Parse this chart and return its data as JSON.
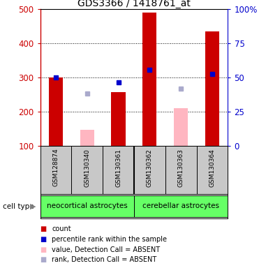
{
  "title": "GDS3366 / 1418761_at",
  "samples": [
    "GSM128874",
    "GSM130340",
    "GSM130361",
    "GSM130362",
    "GSM130363",
    "GSM130364"
  ],
  "cell_type_labels": [
    "neocortical astrocytes",
    "cerebellar astrocytes"
  ],
  "cell_type_color": "#66FF66",
  "red_bars": [
    300,
    null,
    258,
    490,
    null,
    435
  ],
  "pink_bars": [
    null,
    148,
    null,
    null,
    210,
    null
  ],
  "blue_squares": [
    300,
    null,
    287,
    323,
    null,
    310
  ],
  "lavender_squares": [
    null,
    253,
    null,
    null,
    268,
    null
  ],
  "ylim_left": [
    100,
    500
  ],
  "ylim_right": [
    0,
    100
  ],
  "yticks_left": [
    100,
    200,
    300,
    400,
    500
  ],
  "yticks_right": [
    0,
    25,
    50,
    75,
    100
  ],
  "ytick_labels_right": [
    "0",
    "25",
    "50",
    "75",
    "100%"
  ],
  "left_axis_color": "#CC0000",
  "right_axis_color": "#0000CC",
  "bg_sample_row": "#C8C8C8",
  "red_bar_color": "#CC0000",
  "pink_bar_color": "#FFB6C1",
  "blue_square_color": "#0000CC",
  "lavender_square_color": "#AAAACC",
  "bar_width": 0.45,
  "grid_dotted_ticks": [
    200,
    300,
    400
  ],
  "legend_items": [
    {
      "color": "#CC0000",
      "label": "count"
    },
    {
      "color": "#0000CC",
      "label": "percentile rank within the sample"
    },
    {
      "color": "#FFB6C1",
      "label": "value, Detection Call = ABSENT"
    },
    {
      "color": "#AAAACC",
      "label": "rank, Detection Call = ABSENT"
    }
  ]
}
